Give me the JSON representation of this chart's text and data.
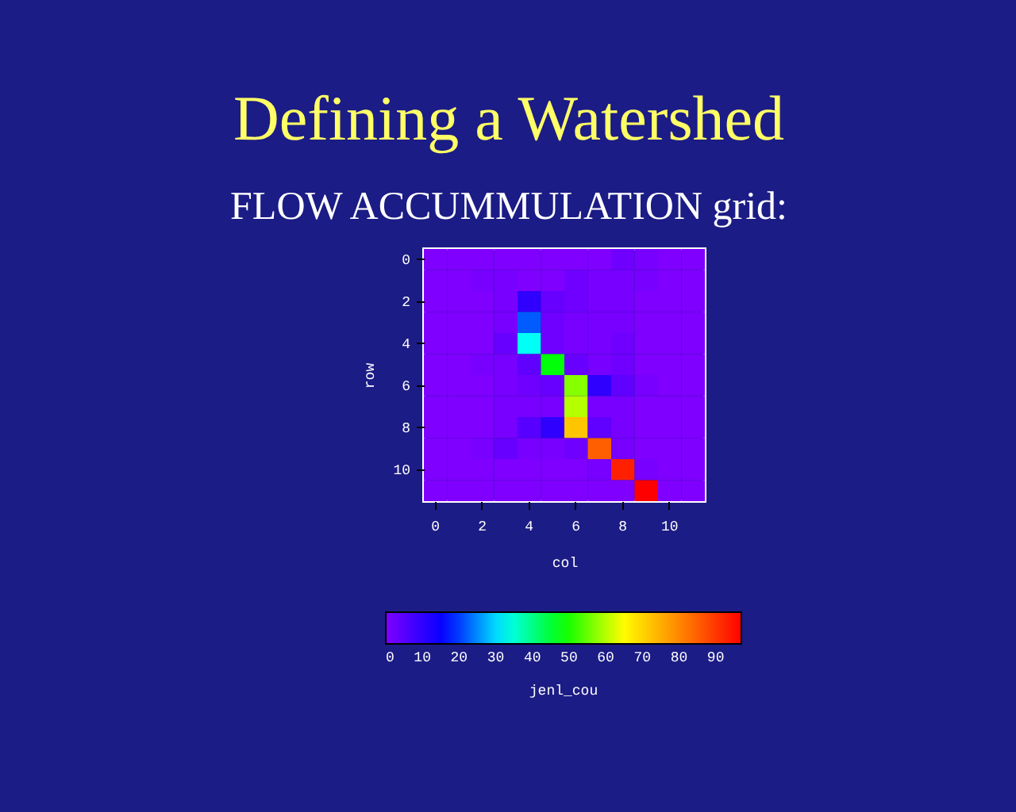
{
  "chart_data": {
    "type": "heatmap",
    "title": "Defining a Watershed",
    "subtitle": "FLOW ACCUMMULATION grid:",
    "xlabel": "col",
    "ylabel": "row",
    "clabel": "jenl_cou",
    "categories": [
      "0",
      null,
      "2",
      null,
      "4",
      null,
      "6",
      null,
      "8",
      null,
      "10",
      null
    ],
    "y_categories": [
      "0",
      null,
      "2",
      null,
      "4",
      null,
      "6",
      null,
      "8",
      null,
      "10",
      null
    ],
    "cells": [
      [
        0,
        0,
        0,
        0,
        0,
        0,
        0,
        0,
        2,
        1,
        0,
        0
      ],
      [
        0,
        0,
        1,
        1,
        0,
        0,
        2,
        1,
        1,
        1,
        0,
        0
      ],
      [
        0,
        0,
        0,
        1,
        10,
        3,
        2,
        1,
        1,
        0,
        0,
        0
      ],
      [
        0,
        0,
        0,
        1,
        22,
        2,
        1,
        1,
        1,
        0,
        0,
        0
      ],
      [
        0,
        0,
        0,
        3,
        33,
        2,
        1,
        1,
        2,
        0,
        0,
        0
      ],
      [
        0,
        0,
        1,
        1,
        4,
        48,
        3,
        1,
        2,
        0,
        0,
        0
      ],
      [
        0,
        0,
        0,
        1,
        2,
        3,
        57,
        10,
        4,
        1,
        0,
        0
      ],
      [
        0,
        0,
        0,
        1,
        1,
        1,
        60,
        1,
        1,
        0,
        0,
        0
      ],
      [
        0,
        0,
        0,
        1,
        5,
        10,
        72,
        4,
        1,
        0,
        0,
        0
      ],
      [
        0,
        0,
        1,
        3,
        1,
        1,
        2,
        85,
        1,
        0,
        0,
        0
      ],
      [
        0,
        0,
        0,
        0,
        0,
        0,
        0,
        1,
        93,
        1,
        0,
        0
      ],
      [
        0,
        0,
        0,
        0,
        0,
        0,
        0,
        0,
        0,
        97,
        0,
        0
      ]
    ],
    "clim": [
      0,
      97
    ],
    "cticks": [
      0,
      10,
      20,
      30,
      40,
      50,
      60,
      70,
      80,
      90
    ]
  }
}
